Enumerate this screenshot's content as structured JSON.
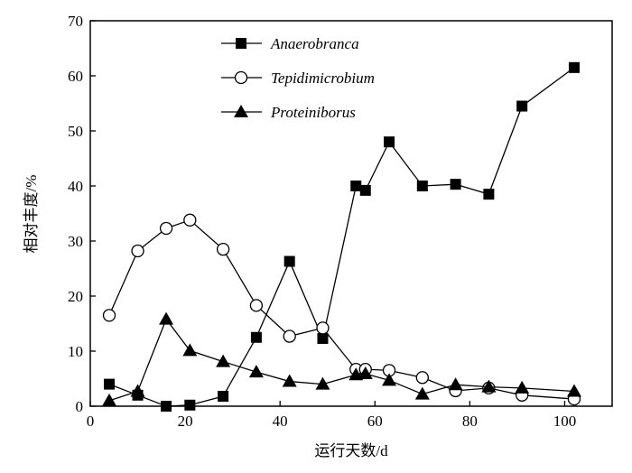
{
  "chart_data": {
    "type": "line",
    "title": "",
    "xlabel": "运行天数/d",
    "ylabel": "相对丰度/%",
    "xlim": [
      0,
      110
    ],
    "ylim": [
      0,
      70
    ],
    "xticks": [
      0,
      20,
      40,
      60,
      80,
      100
    ],
    "yticks": [
      0,
      10,
      20,
      30,
      40,
      50,
      60,
      70
    ],
    "grid": false,
    "legend_position": "top-center",
    "x": [
      4,
      10,
      16,
      21,
      28,
      35,
      42,
      49,
      56,
      58,
      63,
      70,
      77,
      84,
      91,
      102
    ],
    "series": [
      {
        "name": "Anaerobranca",
        "marker": "filled-square",
        "color": "#000000",
        "values": [
          4,
          2,
          0,
          0.2,
          1.8,
          12.5,
          26.3,
          12.3,
          40,
          39.2,
          48,
          40,
          40.3,
          38.5,
          54.5,
          61.5
        ]
      },
      {
        "name": "Tepidimicrobium",
        "marker": "open-circle",
        "color": "#000000",
        "values": [
          16.5,
          28.2,
          32.3,
          33.8,
          28.5,
          18.3,
          12.7,
          14.2,
          6.7,
          6.7,
          6.5,
          5.2,
          2.8,
          3.3,
          2,
          1.3
        ]
      },
      {
        "name": "Proteiniborus",
        "marker": "filled-triangle",
        "color": "#000000",
        "values": [
          1,
          2.7,
          15.8,
          10.1,
          8.1,
          6.2,
          4.5,
          4,
          5.7,
          5.9,
          4.7,
          2.2,
          3.9,
          3.5,
          3.3,
          2.7
        ]
      }
    ]
  }
}
